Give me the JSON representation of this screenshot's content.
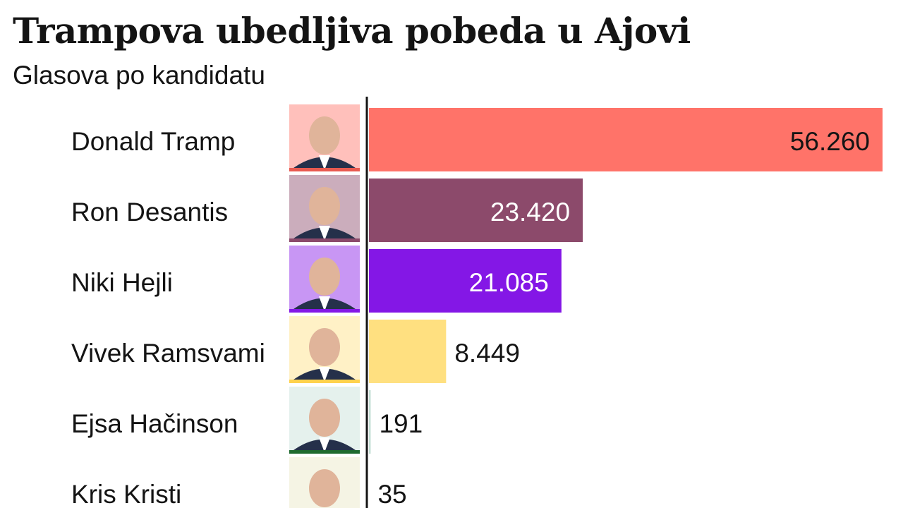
{
  "chart_data": {
    "type": "bar",
    "orientation": "horizontal",
    "title": "Trampova ubedljiva pobeda u Ajovi",
    "subtitle": "Glasova po kandidatu",
    "categories": [
      "Donald Tramp",
      "Ron Desantis",
      "Niki Hejli",
      "Vivek Ramsvami",
      "Ejsa Hačinson",
      "Kris Kristi"
    ],
    "values": [
      56260,
      23420,
      21085,
      8449,
      191,
      35
    ],
    "value_labels": [
      "56.260",
      "23.420",
      "21.085",
      "8.449",
      "191",
      "35"
    ],
    "colors": [
      "#ff7369",
      "#8c4a6b",
      "#8417e6",
      "#ffe080",
      "#c6e1d7",
      "#e9e6c4"
    ],
    "accent_colors": [
      "#e85a50",
      "#8c4a6b",
      "#8417e6",
      "#ffd24d",
      "#1e6a2f",
      "#dcd9b0"
    ],
    "label_colors_inside": [
      "#141414",
      "#ffffff",
      "#ffffff",
      "#141414",
      "#141414",
      "#141414"
    ],
    "xlim": [
      0,
      56260
    ],
    "grid": false,
    "legend": "none",
    "icons": [
      "portrait-trump-icon",
      "portrait-desantis-icon",
      "portrait-haley-icon",
      "portrait-ramaswamy-icon",
      "portrait-hutchinson-icon",
      "portrait-christie-icon"
    ]
  }
}
